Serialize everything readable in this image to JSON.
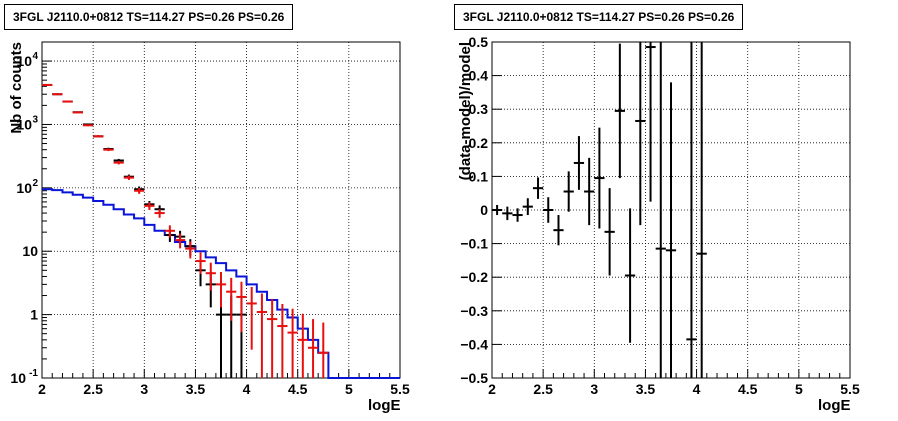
{
  "panels": {
    "left_title": "3FGL J2110.0+0812 TS=114.27 PS=0.26 PS=0.26",
    "right_title": "3FGL J2110.0+0812 TS=114.27 PS=0.26 PS=0.26"
  },
  "colors": {
    "data": "#000000",
    "model": "#e8100f",
    "background": "#0a14d8",
    "grid": "#000000"
  },
  "chart_data": [
    {
      "type": "line",
      "title": "3FGL J2110.0+0812 TS=114.27 PS=0.26 PS=0.26",
      "xlabel": "logE",
      "ylabel": "Nb of counts",
      "xlim": [
        2,
        5.5
      ],
      "ylim": [
        0.1,
        20000
      ],
      "yscale": "log",
      "grid": true,
      "x_ticks": [
        "2",
        "2.5",
        "3",
        "3.5",
        "4",
        "4.5",
        "5",
        "5.5"
      ],
      "y_ticks": [
        {
          "value": 0.1,
          "label": "10",
          "exp": "-1"
        },
        {
          "value": 1,
          "label": "1",
          "exp": ""
        },
        {
          "value": 10,
          "label": "10",
          "exp": ""
        },
        {
          "value": 100,
          "label": "10",
          "exp": "2"
        },
        {
          "value": 1000,
          "label": "10",
          "exp": "3"
        },
        {
          "value": 10000,
          "label": "10",
          "exp": "4"
        }
      ],
      "bin_width": 0.1,
      "series": [
        {
          "role": "data",
          "color": "#000000",
          "x": [
            2.05,
            2.15,
            2.25,
            2.35,
            2.45,
            2.55,
            2.65,
            2.75,
            2.85,
            2.95,
            3.05,
            3.15,
            3.25,
            3.35,
            3.45,
            3.55,
            3.65,
            3.75,
            3.85,
            3.95
          ],
          "y": [
            4200,
            3000,
            2300,
            1560,
            1000,
            650,
            410,
            270,
            150,
            95,
            55,
            46,
            18,
            17,
            12,
            5,
            3,
            1,
            1,
            1
          ],
          "err_low": [
            65,
            55,
            48,
            40,
            32,
            25,
            20,
            16,
            12,
            10,
            7,
            7,
            4,
            4,
            3.5,
            2.2,
            1.7,
            0.99,
            0.99,
            0.99
          ],
          "err_high": [
            65,
            55,
            48,
            40,
            32,
            25,
            20,
            16,
            12,
            10,
            7,
            7,
            4,
            4,
            3.5,
            2.2,
            1.7,
            1,
            1,
            1
          ]
        },
        {
          "role": "model",
          "color": "#e8100f",
          "x": [
            2.05,
            2.15,
            2.25,
            2.35,
            2.45,
            2.55,
            2.65,
            2.75,
            2.85,
            2.95,
            3.05,
            3.15,
            3.25,
            3.35,
            3.45,
            3.55,
            3.65,
            3.75,
            3.85,
            3.95,
            4.05,
            4.15,
            4.25,
            4.35,
            4.45,
            4.55,
            4.65,
            4.75
          ],
          "y": [
            4200,
            3000,
            2300,
            1550,
            970,
            650,
            400,
            250,
            145,
            90,
            52,
            40,
            21,
            15,
            11,
            7,
            4.5,
            3,
            2.3,
            1.9,
            1.5,
            1.1,
            0.85,
            0.66,
            0.52,
            0.4,
            0.3,
            0.25
          ],
          "err_low": [
            65,
            55,
            48,
            39,
            31,
            25,
            20,
            16,
            12,
            9.5,
            7.2,
            6.3,
            4.6,
            3.9,
            3.3,
            2.6,
            2.1,
            1.7,
            1.5,
            1.37,
            1.22,
            1.0,
            0.75,
            0.58,
            0.45,
            0.34,
            0.25,
            0.2
          ],
          "err_high": [
            65,
            55,
            48,
            39,
            31,
            25,
            20,
            16,
            12,
            9.5,
            7.2,
            6.3,
            4.6,
            3.9,
            3.3,
            2.6,
            2.1,
            1.7,
            1.5,
            1.4,
            1.23,
            1.05,
            0.92,
            0.81,
            0.72,
            0.63,
            0.55,
            0.5
          ]
        },
        {
          "role": "background",
          "color": "#0a14d8",
          "x": [
            2.0,
            2.1,
            2.2,
            2.3,
            2.4,
            2.5,
            2.6,
            2.7,
            2.8,
            2.9,
            3.0,
            3.1,
            3.2,
            3.3,
            3.4,
            3.5,
            3.6,
            3.7,
            3.8,
            3.9,
            4.0,
            4.1,
            4.2,
            4.3,
            4.4,
            4.5,
            4.6,
            4.7,
            4.8,
            4.9,
            5.0,
            5.1,
            5.2,
            5.3,
            5.4
          ],
          "y": [
            95,
            92,
            85,
            78,
            70,
            62,
            54,
            46,
            38,
            33,
            26,
            21,
            18,
            14,
            12,
            10,
            8,
            6.5,
            5,
            4,
            3,
            2.3,
            1.7,
            1.2,
            0.9,
            0.6,
            0.4,
            0.25,
            0.1,
            0.1,
            0.1,
            0.1,
            0.1,
            0.1,
            0.1
          ]
        }
      ]
    },
    {
      "type": "scatter",
      "title": "3FGL J2110.0+0812 TS=114.27 PS=0.26 PS=0.26",
      "xlabel": "logE",
      "ylabel": "(data-model)/model",
      "xlim": [
        2,
        5.5
      ],
      "ylim": [
        -0.5,
        0.5
      ],
      "grid": true,
      "x_ticks": [
        "2",
        "2.5",
        "3",
        "3.5",
        "4",
        "4.5",
        "5",
        "5.5"
      ],
      "y_ticks": [
        "-0.5",
        "-0.4",
        "-0.3",
        "-0.2",
        "-0.1",
        "0",
        "0.1",
        "0.2",
        "0.3",
        "0.4",
        "0.5"
      ],
      "bin_width": 0.1,
      "series": [
        {
          "role": "residual",
          "color": "#000000",
          "x": [
            2.05,
            2.15,
            2.25,
            2.35,
            2.45,
            2.55,
            2.65,
            2.75,
            2.85,
            2.95,
            3.05,
            3.15,
            3.25,
            3.35,
            3.45,
            3.55,
            3.65,
            3.75,
            3.95,
            4.05
          ],
          "y": [
            0.0,
            -0.01,
            -0.015,
            0.01,
            0.065,
            0.0,
            -0.06,
            0.055,
            0.14,
            0.055,
            0.095,
            -0.065,
            0.295,
            -0.195,
            0.265,
            0.485,
            -0.115,
            -0.12,
            -0.385,
            -0.13
          ],
          "err": [
            0.015,
            0.02,
            0.02,
            0.025,
            0.032,
            0.038,
            0.045,
            0.06,
            0.08,
            0.1,
            0.15,
            0.13,
            0.2,
            0.2,
            0.31,
            0.46,
            0.9,
            0.5,
            1.0,
            1.0
          ]
        }
      ]
    }
  ]
}
